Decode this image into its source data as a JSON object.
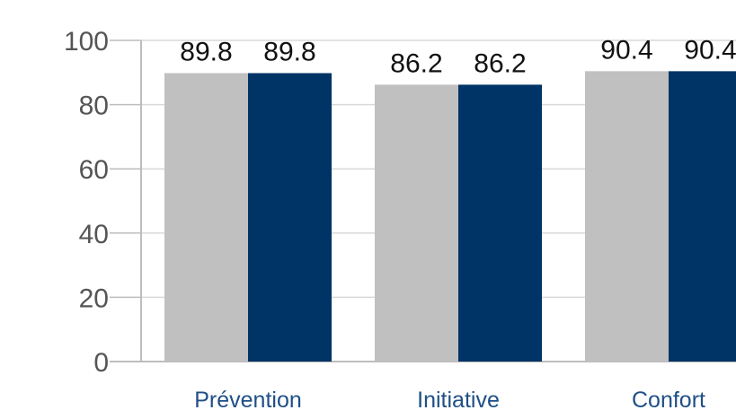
{
  "chart_data": {
    "type": "bar",
    "categories": [
      "Prévention",
      "Initiative",
      "Confort"
    ],
    "series": [
      {
        "values": [
          89.8,
          86.2,
          90.4
        ],
        "color": "#c0c0c0"
      },
      {
        "values": [
          89.8,
          86.2,
          90.4
        ],
        "color": "#003366"
      }
    ],
    "data_labels": [
      [
        "89.8",
        "86.2",
        "90.4"
      ],
      [
        "89.8",
        "86.2",
        "90.4"
      ]
    ],
    "y_ticks": [
      "0",
      "20",
      "40",
      "60",
      "80",
      "100"
    ],
    "ylim": [
      0,
      100
    ],
    "grid": true,
    "legend": "none",
    "gridline_color": "#d9d9d9",
    "axis_color": "#bdbdbd",
    "category_label_color": "#1f4f86"
  }
}
